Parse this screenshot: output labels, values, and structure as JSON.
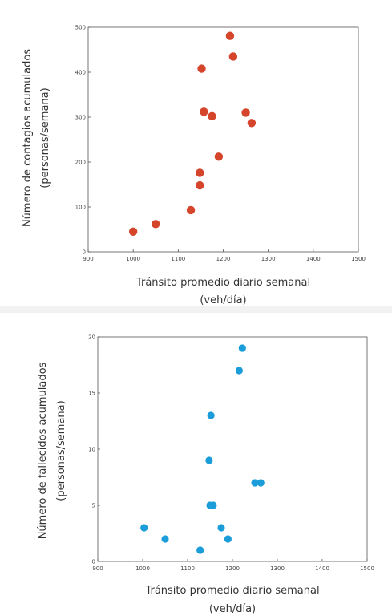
{
  "chart_data": [
    {
      "type": "scatter",
      "title": "",
      "xlabel_lines": [
        "Tránsito promedio diario semanal",
        "(veh/día)"
      ],
      "ylabel_lines": [
        "Número de contagios acumulados",
        "(personas/semana)"
      ],
      "xlim": [
        900,
        1500
      ],
      "ylim": [
        0,
        500
      ],
      "xticks": [
        900,
        1000,
        1100,
        1200,
        1300,
        1400,
        1500
      ],
      "yticks": [
        0,
        100,
        200,
        300,
        400,
        500
      ],
      "xtick_labels": [
        "900",
        "1000",
        "1100",
        "1200",
        "1300",
        "1400",
        "1500"
      ],
      "ytick_labels": [
        "0",
        "100",
        "200",
        "300",
        "400",
        "500"
      ],
      "grid": false,
      "color": "#d5452b",
      "points": [
        {
          "x": 1000,
          "y": 45
        },
        {
          "x": 1050,
          "y": 62
        },
        {
          "x": 1128,
          "y": 93
        },
        {
          "x": 1148,
          "y": 148
        },
        {
          "x": 1148,
          "y": 176
        },
        {
          "x": 1152,
          "y": 408
        },
        {
          "x": 1157,
          "y": 312
        },
        {
          "x": 1175,
          "y": 302
        },
        {
          "x": 1190,
          "y": 212
        },
        {
          "x": 1215,
          "y": 481
        },
        {
          "x": 1222,
          "y": 435
        },
        {
          "x": 1250,
          "y": 310
        },
        {
          "x": 1263,
          "y": 287
        }
      ]
    },
    {
      "type": "scatter",
      "title": "",
      "xlabel_lines": [
        "Tránsito promedio diario semanal",
        "(veh/día)"
      ],
      "ylabel_lines": [
        "Número de fallecidos acumulados",
        "(personas/semana)"
      ],
      "xlim": [
        900,
        1500
      ],
      "ylim": [
        0,
        20
      ],
      "xticks": [
        900,
        1000,
        1100,
        1200,
        1300,
        1400,
        1500
      ],
      "yticks": [
        0,
        5,
        10,
        15,
        20
      ],
      "xtick_labels": [
        "900",
        "1000",
        "1100",
        "1200",
        "1300",
        "1400",
        "1500"
      ],
      "ytick_labels": [
        "0",
        "5",
        "10",
        "15",
        "20"
      ],
      "grid": false,
      "color": "#1b9dd9",
      "points": [
        {
          "x": 1003,
          "y": 3
        },
        {
          "x": 1050,
          "y": 2
        },
        {
          "x": 1128,
          "y": 1
        },
        {
          "x": 1148,
          "y": 9
        },
        {
          "x": 1152,
          "y": 13
        },
        {
          "x": 1150,
          "y": 5
        },
        {
          "x": 1157,
          "y": 5
        },
        {
          "x": 1175,
          "y": 3
        },
        {
          "x": 1190,
          "y": 2
        },
        {
          "x": 1215,
          "y": 17
        },
        {
          "x": 1222,
          "y": 19
        },
        {
          "x": 1250,
          "y": 7
        },
        {
          "x": 1263,
          "y": 7
        }
      ]
    }
  ]
}
